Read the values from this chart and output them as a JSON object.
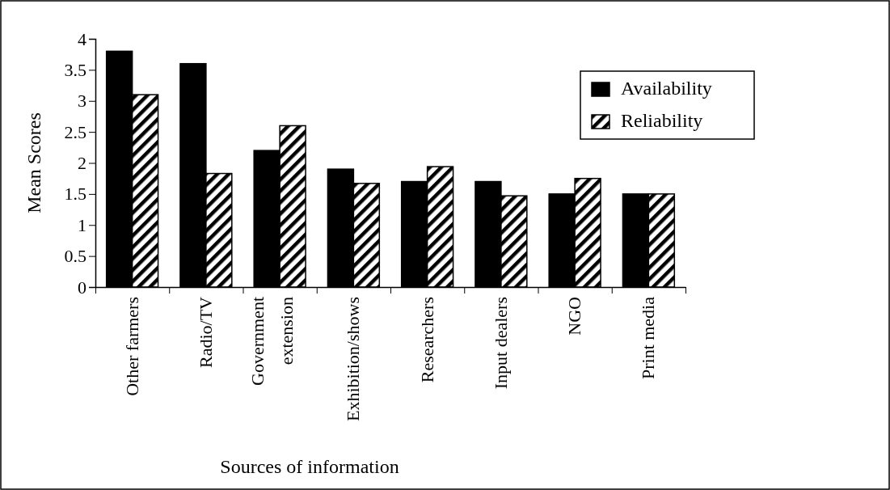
{
  "chart_data": {
    "type": "bar",
    "xlabel": "Sources of information",
    "ylabel": "Mean Scores",
    "categories": [
      "Other farmers",
      "Radio/TV",
      "Government extension",
      "Exhibition/shows",
      "Researchers",
      "Input dealers",
      "NGO",
      "Print media"
    ],
    "series": [
      {
        "name": "Availability",
        "color": "#000000",
        "values": [
          3.8,
          3.6,
          2.2,
          1.9,
          1.7,
          1.7,
          1.5,
          1.5
        ]
      },
      {
        "name": "Reliability",
        "color": "#000000",
        "values": [
          3.1,
          1.83,
          2.6,
          1.67,
          1.94,
          1.47,
          1.75,
          1.5
        ]
      }
    ],
    "ylim": [
      0,
      4
    ],
    "yticks": [
      0,
      0.5,
      1,
      1.5,
      2,
      2.5,
      3,
      3.5,
      4
    ],
    "grid": false,
    "legend": "top right"
  }
}
